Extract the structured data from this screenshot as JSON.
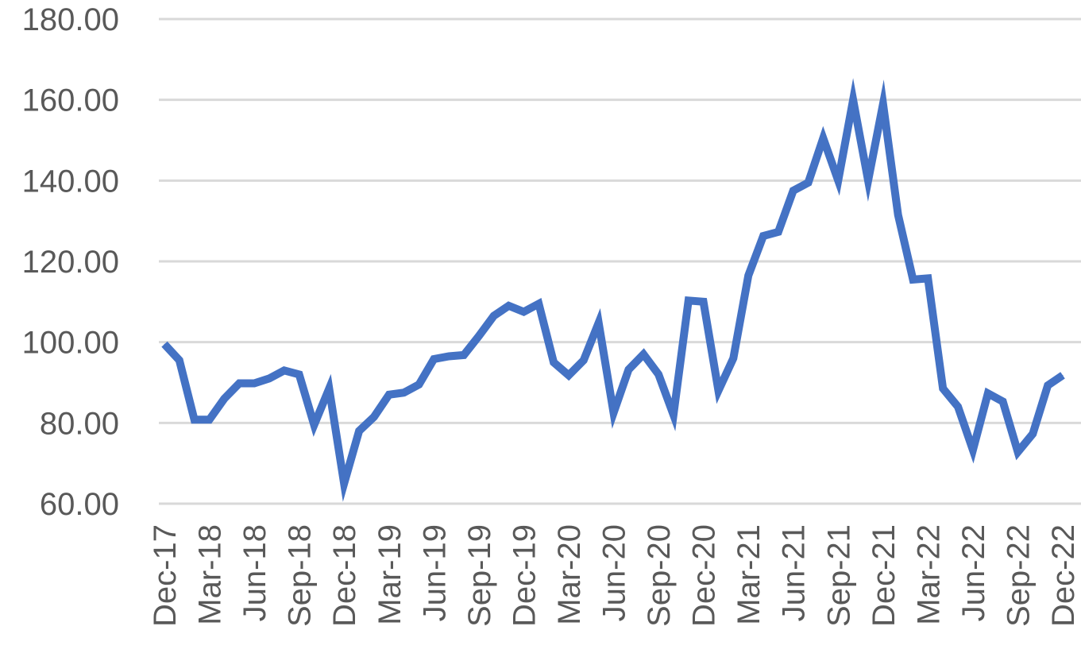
{
  "chart_data": {
    "type": "line",
    "title": "",
    "xlabel": "",
    "ylabel": "",
    "ylim": [
      60,
      180
    ],
    "y_ticks": [
      "60.00",
      "80.00",
      "100.00",
      "120.00",
      "140.00",
      "160.00",
      "180.00"
    ],
    "y_tick_values": [
      60,
      80,
      100,
      120,
      140,
      160,
      180
    ],
    "grid": true,
    "legend": "none",
    "line_color": "#4472c4",
    "x_tick_labels": [
      "Dec-17",
      "Mar-18",
      "Jun-18",
      "Sep-18",
      "Dec-18",
      "Mar-19",
      "Jun-19",
      "Sep-19",
      "Dec-19",
      "Mar-20",
      "Jun-20",
      "Sep-20",
      "Dec-20",
      "Mar-21",
      "Jun-21",
      "Sep-21",
      "Dec-21",
      "Mar-22",
      "Jun-22",
      "Sep-22",
      "Dec-22"
    ],
    "x": [
      "Dec-17",
      "Jan-18",
      "Feb-18",
      "Mar-18",
      "Apr-18",
      "May-18",
      "Jun-18",
      "Jul-18",
      "Aug-18",
      "Sep-18",
      "Oct-18",
      "Nov-18",
      "Dec-18",
      "Jan-19",
      "Feb-19",
      "Mar-19",
      "Apr-19",
      "May-19",
      "Jun-19",
      "Jul-19",
      "Aug-19",
      "Sep-19",
      "Oct-19",
      "Nov-19",
      "Dec-19",
      "Jan-20",
      "Feb-20",
      "Mar-20",
      "Apr-20",
      "May-20",
      "Jun-20",
      "Jul-20",
      "Aug-20",
      "Sep-20",
      "Oct-20",
      "Nov-20",
      "Dec-20",
      "Jan-21",
      "Feb-21",
      "Mar-21",
      "Apr-21",
      "May-21",
      "Jun-21",
      "Jul-21",
      "Aug-21",
      "Sep-21",
      "Oct-21",
      "Nov-21",
      "Dec-21",
      "Jan-22",
      "Feb-22",
      "Mar-22",
      "Apr-22",
      "May-22",
      "Jun-22",
      "Jul-22",
      "Aug-22",
      "Sep-22",
      "Oct-22",
      "Nov-22",
      "Dec-22"
    ],
    "series": [
      {
        "values": [
          99.5,
          95.5,
          80.8,
          80.8,
          86.0,
          89.8,
          89.8,
          91.0,
          93.0,
          92.0,
          79.5,
          88.5,
          65.0,
          78.0,
          81.5,
          87.0,
          87.5,
          89.5,
          95.8,
          96.5,
          96.8,
          101.5,
          106.5,
          109.0,
          107.5,
          109.5,
          95.0,
          91.8,
          95.5,
          104.8,
          82.5,
          93.2,
          97.0,
          92.0,
          82.0,
          110.3,
          110.0,
          88.0,
          96.0,
          116.5,
          126.3,
          127.3,
          137.5,
          139.5,
          150.5,
          140.0,
          160.0,
          140.0,
          159.0,
          131.5,
          115.5,
          115.8,
          88.5,
          84.0,
          73.3,
          87.3,
          85.3,
          72.8,
          77.3,
          89.3,
          91.8
        ]
      }
    ]
  }
}
